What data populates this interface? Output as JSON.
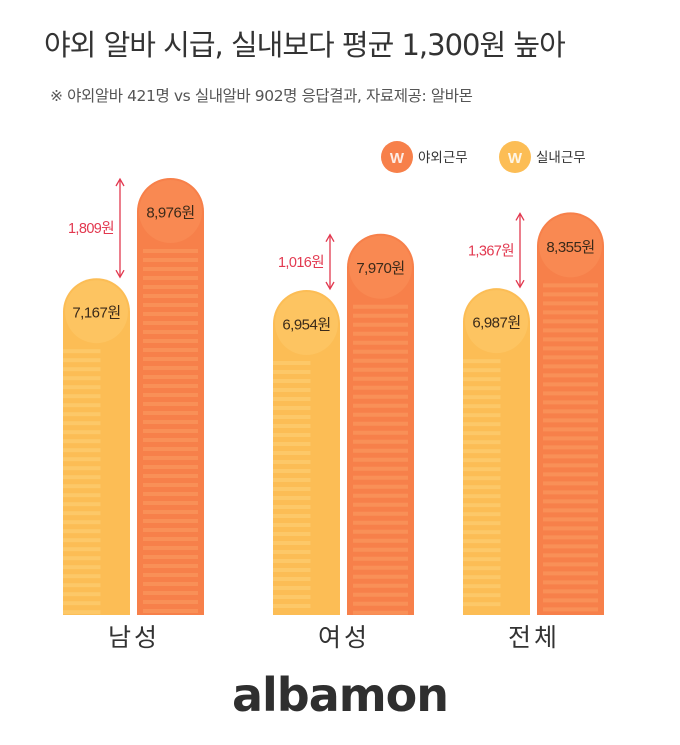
{
  "title": "야외 알바 시급, 실내보다 평균 1,300원 높아",
  "subtitle": "※ 야외알바 421명 vs 실내알바 902명 응답결과,  자료제공: 알바몬",
  "logo_text": "albamon",
  "colors": {
    "outdoor": "#f7804a",
    "outdoor_stripe": "#fb9c62",
    "indoor": "#fcbd55",
    "indoor_stripe": "#fed178",
    "difference": "#e2384f",
    "logo_accent": "#f39a1f"
  },
  "chart_data": {
    "type": "bar",
    "unit": "원",
    "categories": [
      "남성",
      "여성",
      "전체"
    ],
    "series": [
      {
        "name": "실내근무",
        "icon": "won-coin-icon",
        "values": [
          7167,
          6954,
          6987
        ],
        "labels": [
          "7,167원",
          "6,954원",
          "6,987원"
        ]
      },
      {
        "name": "야외근무",
        "icon": "won-coin-icon",
        "values": [
          8976,
          7970,
          8355
        ],
        "labels": [
          "8,976원",
          "7,970원",
          "8,355원"
        ]
      }
    ],
    "differences": [
      1809,
      1016,
      1367
    ],
    "difference_labels": [
      "1,809원",
      "1,016원",
      "1,367원"
    ],
    "legend": [
      "야외근무",
      "실내근무"
    ],
    "legend_symbol": "W",
    "legend_position": "top-right"
  }
}
